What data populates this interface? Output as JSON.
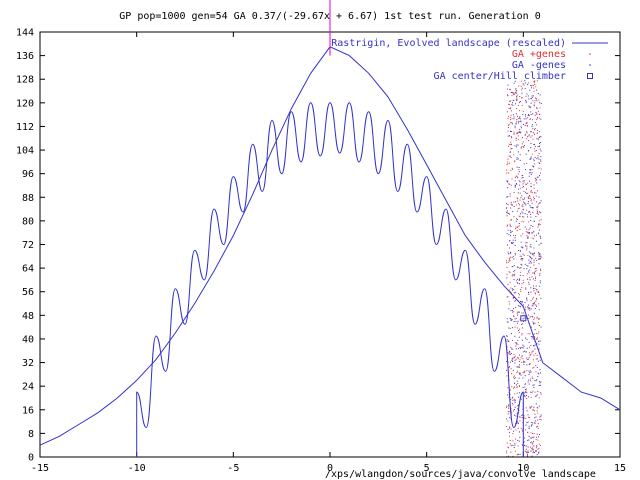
{
  "chart_data": {
    "type": "line",
    "title": "GP pop=1000 gen=54  GA  0.37/(-29.67x + 6.67) 1st test run. Generation 0",
    "footer": "/xps/wlangdon/sources/java/convolve landscape",
    "xlim": [
      -15,
      15
    ],
    "ylim": [
      0,
      144
    ],
    "xticks": [
      -15,
      -10,
      -5,
      0,
      5,
      10,
      15
    ],
    "xtick_labels": [
      "-15",
      "-10",
      "-5",
      "0",
      "5",
      "10",
      "15"
    ],
    "yticks": [
      0,
      8,
      16,
      24,
      32,
      40,
      48,
      56,
      64,
      72,
      80,
      88,
      96,
      104,
      112,
      120,
      128,
      136,
      144
    ],
    "ytick_labels": [
      "0",
      "8",
      "16",
      "24",
      "32",
      "40",
      "48",
      "56",
      "64",
      "72",
      "80",
      "88",
      "96",
      "104",
      "112",
      "120",
      "128",
      "136",
      "144"
    ],
    "grid": false,
    "legend_position": "top-right",
    "legend": [
      {
        "label": "Rastrigin, Evolved landscape (rescaled)",
        "color": "#3333cc",
        "marker": "line"
      },
      {
        "label": "GA +genes",
        "color": "#e03030",
        "marker": "dot"
      },
      {
        "label": "GA -genes",
        "color": "#3333cc",
        "marker": "dot"
      },
      {
        "label": "GA center/Hill climber",
        "color": "#3333cc",
        "marker": "square"
      }
    ],
    "series": [
      {
        "kind": "envelope",
        "color": "#3333cc",
        "x": [
          -15,
          -14,
          -13,
          -12,
          -11,
          -10,
          -9,
          -8,
          -7,
          -6,
          -5,
          -4,
          -3,
          -2,
          -1,
          0,
          1,
          2,
          3,
          4,
          5,
          6,
          7,
          8,
          9,
          10,
          11,
          12,
          13,
          14,
          15
        ],
        "y": [
          4,
          7,
          11,
          15,
          20,
          26,
          33,
          42,
          52,
          63,
          75,
          89,
          104,
          118,
          130,
          139,
          136,
          130,
          122,
          111,
          99,
          87,
          75,
          66,
          58,
          51,
          32,
          27,
          22,
          20,
          16
        ]
      },
      {
        "kind": "rastrigin",
        "color": "#3333cc",
        "x": [
          -10,
          -10,
          -9.5,
          -9,
          -8.5,
          -8,
          -7.5,
          -7,
          -6.5,
          -6,
          -5.5,
          -5,
          -4.5,
          -4,
          -3.5,
          -3,
          -2.5,
          -2,
          -1.5,
          -1,
          -0.5,
          0,
          0.5,
          1,
          1.5,
          2,
          2.5,
          3,
          3.5,
          4,
          4.5,
          5,
          5.5,
          6,
          6.5,
          7,
          7.5,
          8,
          8.5,
          9,
          9.5,
          10,
          10
        ],
        "y": [
          0,
          22,
          10,
          41,
          29,
          57,
          45,
          70,
          60,
          84,
          72,
          95,
          83,
          106,
          90,
          114,
          96,
          117,
          100,
          120,
          102,
          120,
          103,
          120,
          100,
          117,
          96,
          114,
          90,
          106,
          83,
          95,
          72,
          84,
          60,
          70,
          45,
          57,
          29,
          41,
          10,
          22,
          0
        ]
      }
    ],
    "gene_band": {
      "x_range": [
        9.1,
        10.9
      ],
      "y_range": [
        0,
        128
      ]
    },
    "center_point": {
      "x": 10,
      "y": 47
    },
    "vertical_marker": {
      "x": 0,
      "y_range": [
        136,
        160
      ],
      "color": "#e000e0"
    }
  }
}
